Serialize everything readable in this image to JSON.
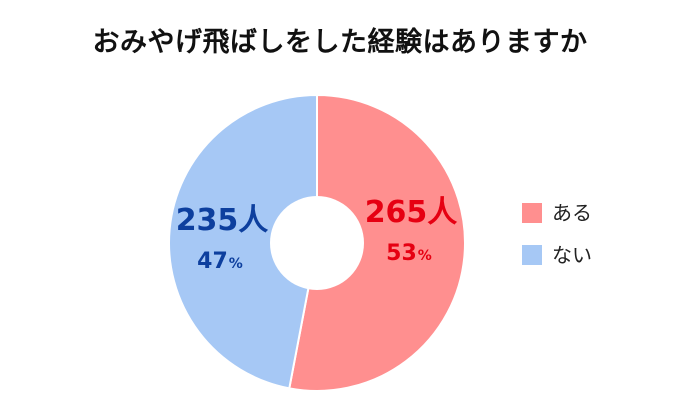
{
  "chart_data": {
    "type": "pie",
    "variant": "donut",
    "title": "おみやげ飛ばしをした経験はありますか",
    "start_angle_deg": 0,
    "direction": "clockwise",
    "legend_position": "right",
    "unit_label": "人",
    "percent_sign": "%",
    "slices": [
      {
        "label": "ある",
        "value": 265,
        "percent": 53,
        "color": "#ff8f8f",
        "label_color": "#e60012"
      },
      {
        "label": "ない",
        "value": 235,
        "percent": 47,
        "color": "#a6c8f5",
        "label_color": "#0d3f9e"
      }
    ]
  }
}
